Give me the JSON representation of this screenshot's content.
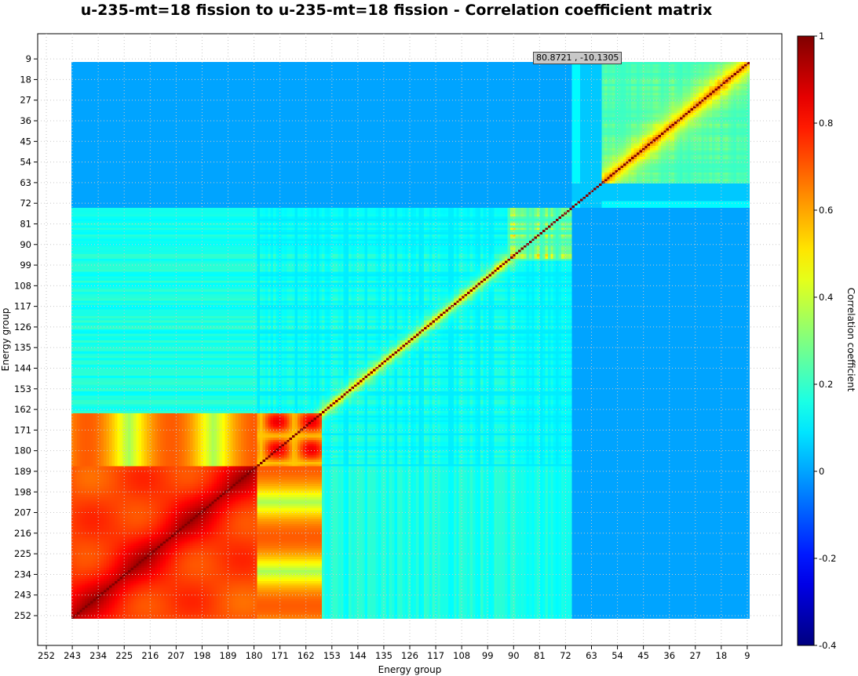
{
  "chart_data": {
    "type": "heatmap",
    "title": "u-235-mt=18 fission to u-235-mt=18 fission - Correlation coefficient matrix",
    "xlabel": "Energy group",
    "ylabel": "Energy group",
    "x_ticks": [
      252,
      243,
      234,
      225,
      216,
      207,
      198,
      189,
      180,
      171,
      162,
      153,
      144,
      135,
      126,
      117,
      108,
      99,
      90,
      81,
      72,
      63,
      54,
      45,
      36,
      27,
      18,
      9
    ],
    "y_ticks": [
      9,
      18,
      27,
      36,
      45,
      54,
      63,
      72,
      81,
      90,
      99,
      108,
      117,
      126,
      135,
      144,
      153,
      162,
      171,
      180,
      189,
      198,
      207,
      216,
      225,
      234,
      243,
      252
    ],
    "x_range": [
      255,
      -3
    ],
    "y_range": [
      -2,
      265
    ],
    "groups": 252,
    "colorbar": {
      "label": "Correlation coefficient",
      "range": [
        -0.4,
        1
      ],
      "ticks": [
        1,
        0.8,
        0.6,
        0.4,
        0.2,
        0,
        -0.2,
        -0.4
      ],
      "colormap": "jet"
    },
    "grid": true,
    "regions": [
      {
        "name": "upper-block-groups-1-66-vs-67-252",
        "x_groups": [
          67,
          252
        ],
        "y_groups": [
          1,
          66
        ],
        "value": 0.0
      },
      {
        "name": "lower-block-groups-67-252-vs-1-66",
        "x_groups": [
          1,
          66
        ],
        "y_groups": [
          67,
          252
        ],
        "value": 0.0
      },
      {
        "name": "high-energy-block",
        "x_groups": [
          1,
          66
        ],
        "y_groups": [
          1,
          66
        ],
        "value": 0.25
      },
      {
        "name": "mid-energy-block",
        "x_groups": [
          67,
          183
        ],
        "y_groups": [
          67,
          183
        ],
        "value": 0.13
      },
      {
        "name": "low-energy-block",
        "x_groups": [
          184,
          252
        ],
        "y_groups": [
          184,
          252
        ],
        "value": 0.75
      }
    ],
    "diagonal_value": 1.0
  },
  "cursor_readout": "80.8721 , -10.1305"
}
